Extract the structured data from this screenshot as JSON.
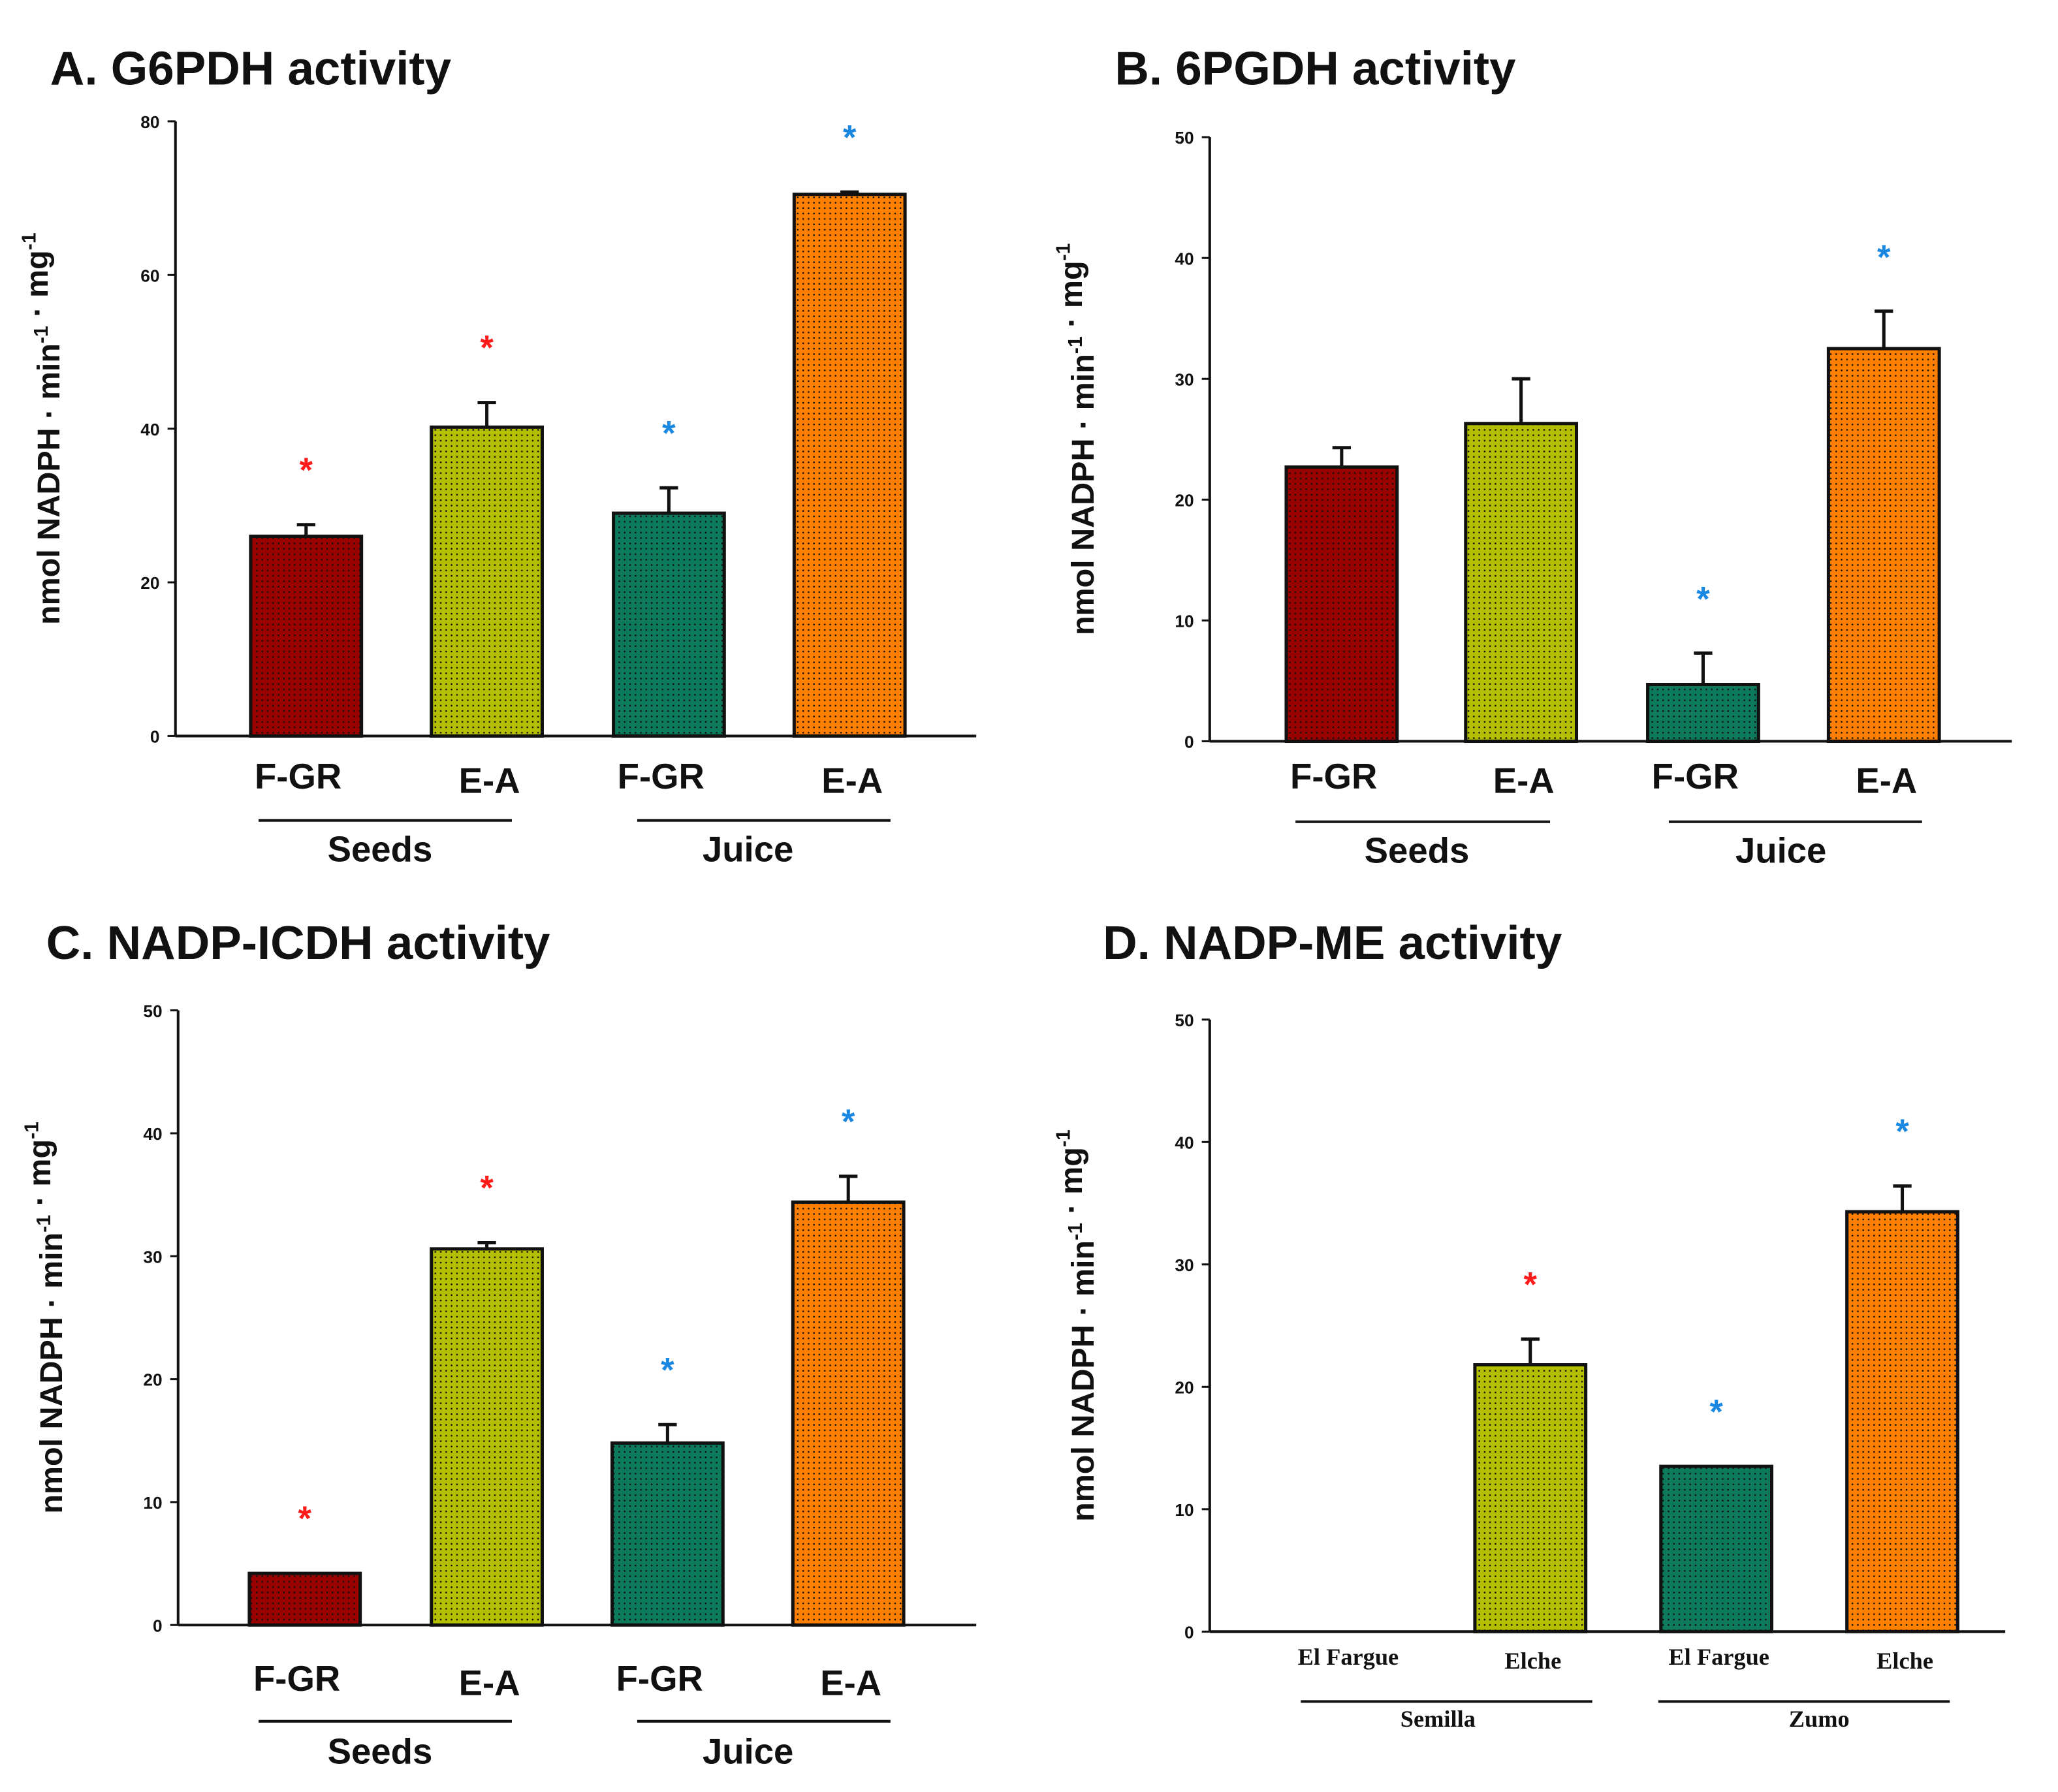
{
  "colors": {
    "seeds_fgr": "#990000",
    "seeds_ea": "#b3bf00",
    "juice_fgr": "#0d7a5c",
    "juice_ea": "#ff8000",
    "star_red": "#ff1a1a",
    "star_blue": "#1a88e0"
  },
  "chart_data": [
    {
      "type": "bar",
      "title": "A. G6PDH activity",
      "ylabel": "nmol NADPH · min⁻¹ · mg⁻¹",
      "ylim": [
        0,
        80
      ],
      "yticks": [
        "0",
        "20",
        "40",
        "60",
        "80"
      ],
      "categories": [
        "F-GR",
        "E-A",
        "F-GR",
        "E-A"
      ],
      "groups": [
        "Seeds",
        "Juice"
      ],
      "values": [
        26,
        40.2,
        29,
        70.5
      ],
      "errors": [
        1.5,
        3.2,
        3.3,
        0.3
      ],
      "significance": [
        "red",
        "red",
        "blue",
        "blue"
      ]
    },
    {
      "type": "bar",
      "title": "B. 6PGDH activity",
      "ylabel": "nmol NADPH · min⁻¹ · mg⁻¹",
      "ylim": [
        0,
        50
      ],
      "yticks": [
        "0",
        "10",
        "20",
        "30",
        "40",
        "50"
      ],
      "categories": [
        "F-GR",
        "E-A",
        "F-GR",
        "E-A"
      ],
      "groups": [
        "Seeds",
        "Juice"
      ],
      "values": [
        22.7,
        26.3,
        4.7,
        32.5
      ],
      "errors": [
        1.6,
        3.7,
        2.6,
        3.1
      ],
      "significance": [
        "",
        "",
        "blue",
        "blue"
      ]
    },
    {
      "type": "bar",
      "title": "C. NADP-ICDH activity",
      "ylabel": "nmol NADPH · min⁻¹ · mg⁻¹",
      "ylim": [
        0,
        50
      ],
      "yticks": [
        "0",
        "10",
        "20",
        "30",
        "40",
        "50"
      ],
      "categories": [
        "F-GR",
        "E-A",
        "F-GR",
        "E-A"
      ],
      "groups": [
        "Seeds",
        "Juice"
      ],
      "values": [
        4.2,
        30.6,
        14.8,
        34.4
      ],
      "errors": [
        0,
        0.5,
        1.5,
        2.1
      ],
      "significance": [
        "red",
        "red",
        "blue",
        "blue"
      ]
    },
    {
      "type": "bar",
      "title": "D. NADP-ME activity",
      "ylabel": "nmol NADPH · min⁻¹ · mg⁻¹",
      "ylim": [
        0,
        50
      ],
      "yticks": [
        "0",
        "10",
        "20",
        "30",
        "40",
        "50"
      ],
      "categories": [
        "El Fargue",
        "Elche",
        "El Fargue",
        "Elche"
      ],
      "groups": [
        "Semilla",
        "Zumo"
      ],
      "values": [
        0,
        21.8,
        13.5,
        34.3
      ],
      "errors": [
        0,
        2.1,
        0,
        2.1
      ],
      "significance": [
        "",
        "red",
        "blue",
        "blue"
      ]
    }
  ]
}
